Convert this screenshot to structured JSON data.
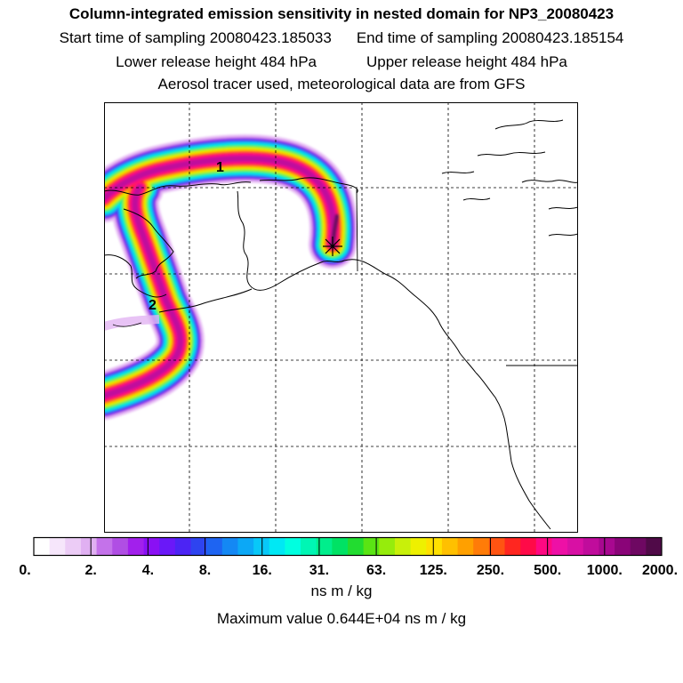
{
  "header": {
    "title": "Column-integrated emission sensitivity in nested domain for NP3_20080423",
    "start_sampling": "Start time of sampling 20080423.185033",
    "end_sampling": "End time of sampling 20080423.185154",
    "lower_release": "Lower release height  484 hPa",
    "upper_release": "Upper release height  484 hPa",
    "tracer_note": "Aerosol tracer used, meteorological data are from GFS"
  },
  "map": {
    "markers": [
      {
        "label": "1"
      },
      {
        "label": "2"
      }
    ],
    "receptor_icon": "asterisk-icon"
  },
  "colorbar": {
    "tick_labels": [
      "0.",
      "2.",
      "4.",
      "8.",
      "16.",
      "31.",
      "63.",
      "125.",
      "250.",
      "500.",
      "1000.",
      "2000."
    ],
    "colors": [
      "#ffffff",
      "#f6e6fb",
      "#ecccf6",
      "#e0b0f2",
      "#c472ea",
      "#b04ee4",
      "#a220ec",
      "#8a10f4",
      "#6a18f8",
      "#4c24f4",
      "#2e44f0",
      "#1e64f2",
      "#1488f4",
      "#0ca8f6",
      "#08c8f8",
      "#00e8f4",
      "#00ffe0",
      "#00f6b4",
      "#00ee8c",
      "#00e264",
      "#22dc30",
      "#5ae414",
      "#96ec0c",
      "#c8f00a",
      "#eef000",
      "#ffe000",
      "#ffc000",
      "#ffa000",
      "#ff7c08",
      "#ff5412",
      "#ff2620",
      "#ff0a48",
      "#ff0882",
      "#ee10a6",
      "#d810a4",
      "#c00c9c",
      "#a80890",
      "#8a0478",
      "#6e0862",
      "#500a48"
    ],
    "unit": "ns m / kg"
  },
  "footer": {
    "max_value": "Maximum value  0.644E+04 ns m / kg"
  }
}
